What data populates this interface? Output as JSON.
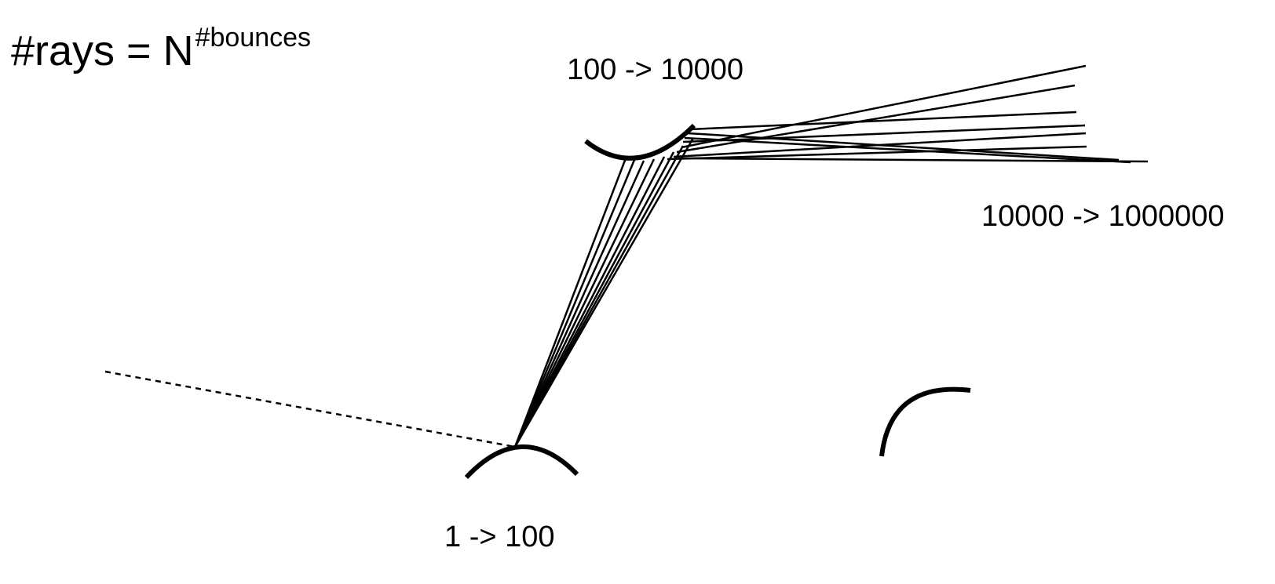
{
  "formula": {
    "base": "#rays = N",
    "exponent": "#bounces"
  },
  "labels": {
    "first_bounce": "1 -> 100",
    "second_bounce": "100 -> 10000",
    "third_bounce": "10000 -> 1000000"
  },
  "colors": {
    "stroke": "#000000",
    "background": "#ffffff"
  }
}
